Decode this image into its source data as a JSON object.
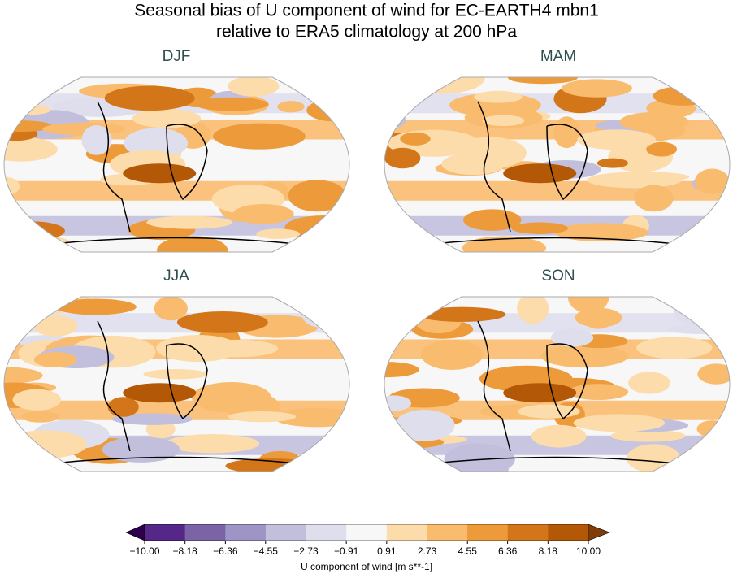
{
  "header": {
    "title_lines": [
      "Seasonal bias of U component of wind for EC-EARTH4 mbn1",
      "relative to ERA5 climatology at 200 hPa"
    ]
  },
  "panels": [
    {
      "title": "DJF"
    },
    {
      "title": "MAM"
    },
    {
      "title": "JJA"
    },
    {
      "title": "SON"
    }
  ],
  "colorbar": {
    "label": "U component of wind [m s**-1]",
    "ticks": [
      {
        "value": -10,
        "label": "−10.00"
      },
      {
        "value": -8.18,
        "label": "−8.18"
      },
      {
        "value": -6.36,
        "label": "−6.36"
      },
      {
        "value": -4.55,
        "label": "−4.55"
      },
      {
        "value": -2.73,
        "label": "−2.73"
      },
      {
        "value": -0.91,
        "label": "−0.91"
      },
      0.91,
      2.73,
      4.55,
      6.36,
      8.18,
      {
        "value": 10,
        "label": "10.00"
      }
    ],
    "colors": [
      "#542788",
      "#7b64a6",
      "#9e94c6",
      "#c2bfdd",
      "#dedeed",
      "#f7f7f7",
      "#fddcac",
      "#f9bb6e",
      "#ec9a3a",
      "#d3761a",
      "#b35806"
    ],
    "extend_colors": [
      "#2d004b",
      "#7f3b08"
    ]
  }
}
